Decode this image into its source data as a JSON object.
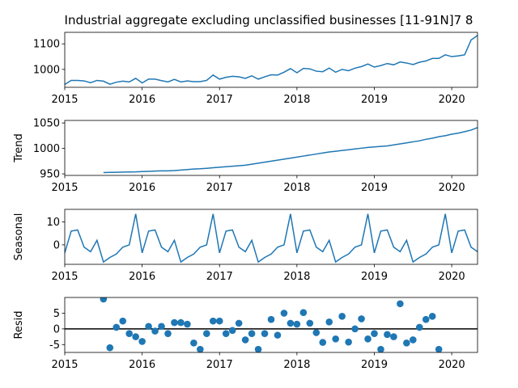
{
  "chart_data": {
    "type": "line",
    "title": "Industrial aggregate excluding unclassified businesses  [11-91N]7 8",
    "line_color": "#1f77b4",
    "zero_line_color": "#000000",
    "x_start": "2015-01",
    "x_ticks": [
      "2015",
      "2016",
      "2017",
      "2018",
      "2019",
      "2020"
    ],
    "panels": [
      {
        "name": "observed",
        "ylabel": "",
        "kind": "line",
        "ylim": [
          930,
          1145
        ],
        "yticks": [
          1000,
          1100
        ],
        "x_offset": 0,
        "values": [
          941,
          957,
          957,
          955,
          948,
          957,
          954,
          942,
          950,
          954,
          951,
          965,
          947,
          962,
          962,
          956,
          951,
          961,
          951,
          955,
          952,
          952,
          957,
          978,
          962,
          969,
          973,
          971,
          965,
          975,
          962,
          971,
          979,
          978,
          989,
          1003,
          987,
          1004,
          1002,
          993,
          991,
          1005,
          989,
          1000,
          995,
          1005,
          1011,
          1021,
          1009,
          1015,
          1023,
          1018,
          1029,
          1025,
          1019,
          1028,
          1033,
          1043,
          1043,
          1057,
          1050,
          1053,
          1057,
          1115,
          1133
        ]
      },
      {
        "name": "trend",
        "ylabel": "Trend",
        "kind": "line",
        "ylim": [
          947,
          1055
        ],
        "yticks": [
          950,
          1000,
          1050
        ],
        "x_offset": 6,
        "values": [
          952.5,
          952.9,
          953.2,
          953.5,
          953.8,
          954.0,
          954.5,
          955.0,
          955.5,
          956.0,
          956.0,
          956.5,
          957.5,
          958.5,
          959.5,
          960.0,
          961.0,
          962.0,
          963.0,
          964.0,
          965.0,
          966.0,
          967.0,
          969.0,
          971.0,
          973.0,
          975.0,
          977.0,
          979.0,
          981.0,
          983.0,
          985.0,
          987.0,
          989.0,
          991.0,
          993.0,
          994.5,
          996.0,
          997.5,
          999.0,
          1000.5,
          1002.0,
          1003.0,
          1004.0,
          1005.0,
          1007.0,
          1009.0,
          1011.0,
          1013.0,
          1015.0,
          1018.0,
          1020.0,
          1023.0,
          1025.0,
          1028.0,
          1030.0,
          1033.0,
          1036.0,
          1041.0,
          1051.0
        ]
      },
      {
        "name": "seasonal",
        "ylabel": "Seasonal",
        "kind": "line",
        "ylim": [
          -8.5,
          15.5
        ],
        "yticks": [
          0,
          10
        ],
        "x_offset": 0,
        "values": [
          -3.5,
          6,
          6.5,
          -1,
          -3,
          2,
          -7.5,
          -5.5,
          -4,
          -1,
          0,
          13.5
        ]
      },
      {
        "name": "resid",
        "ylabel": "Resid",
        "kind": "scatter",
        "ylim": [
          -7.5,
          10
        ],
        "yticks": [
          -5,
          0,
          5
        ],
        "zero_line": true,
        "x_offset": 6,
        "values": [
          9.5,
          -6,
          0.5,
          2.5,
          -1.5,
          -2.5,
          -4,
          0.8,
          -0.7,
          0.8,
          -1.5,
          2,
          2,
          1.5,
          -4.5,
          -6.5,
          -1.5,
          2.5,
          2.5,
          -1.5,
          -0.5,
          1.8,
          -3.5,
          -1.5,
          -6.5,
          -1.5,
          3,
          -2,
          5,
          1.8,
          1.5,
          5.2,
          1.8,
          -1.2,
          -4.3,
          2.2,
          -3.2,
          4,
          -4.2,
          0,
          3.2,
          -3.2,
          -1.5,
          -6.5,
          -1.8,
          -2.5,
          8,
          -4.5,
          -3.5,
          0.5,
          3,
          4,
          -6.5
        ]
      }
    ]
  }
}
